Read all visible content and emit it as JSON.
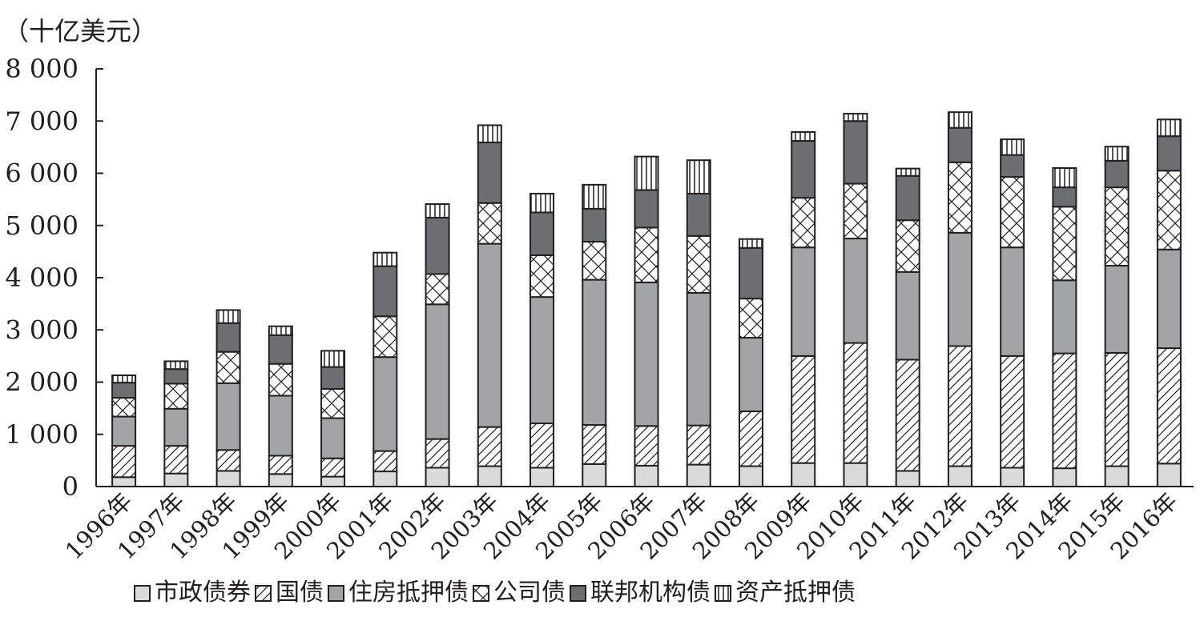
{
  "chart_data": {
    "type": "bar",
    "stacked": true,
    "unit_label": "（十亿美元）",
    "title": "",
    "xlabel": "",
    "ylabel": "",
    "ylim": [
      0,
      8000
    ],
    "yticks": [
      0,
      1000,
      2000,
      3000,
      4000,
      5000,
      6000,
      7000,
      8000
    ],
    "ytick_labels": [
      "0",
      "1 000",
      "2 000",
      "3 000",
      "4 000",
      "5 000",
      "6 000",
      "7 000",
      "8 000"
    ],
    "grid": false,
    "legend_position": "bottom",
    "categories": [
      "1996年",
      "1997年",
      "1998年",
      "1999年",
      "2000年",
      "2001年",
      "2002年",
      "2003年",
      "2004年",
      "2005年",
      "2006年",
      "2007年",
      "2008年",
      "2009年",
      "2010年",
      "2011年",
      "2012年",
      "2013年",
      "2014年",
      "2015年",
      "2016年"
    ],
    "series": [
      {
        "name": "市政债券",
        "pattern": "solid-light",
        "values": [
          180,
          250,
          300,
          240,
          190,
          290,
          360,
          390,
          360,
          430,
          400,
          420,
          390,
          450,
          450,
          300,
          390,
          360,
          350,
          390,
          440
        ]
      },
      {
        "name": "国债",
        "pattern": "hatch",
        "values": [
          600,
          530,
          400,
          350,
          350,
          390,
          550,
          750,
          850,
          750,
          760,
          750,
          1050,
          2050,
          2300,
          2130,
          2300,
          2140,
          2200,
          2170,
          2210
        ]
      },
      {
        "name": "住房抵押债",
        "pattern": "solid-medium",
        "values": [
          560,
          710,
          1280,
          1150,
          770,
          1800,
          2580,
          3510,
          2420,
          2780,
          2750,
          2540,
          1410,
          2080,
          2000,
          1680,
          2170,
          2080,
          1400,
          1670,
          1890
        ]
      },
      {
        "name": "公司债",
        "pattern": "crosshatch",
        "values": [
          360,
          480,
          600,
          610,
          560,
          780,
          580,
          780,
          800,
          730,
          1050,
          1090,
          750,
          950,
          1050,
          990,
          1350,
          1350,
          1410,
          1500,
          1510
        ]
      },
      {
        "name": "联邦机构债",
        "pattern": "solid-dark",
        "values": [
          290,
          280,
          550,
          550,
          420,
          960,
          1080,
          1160,
          820,
          630,
          720,
          810,
          970,
          1090,
          1200,
          850,
          660,
          420,
          370,
          510,
          660
        ]
      },
      {
        "name": "资产抵押债",
        "pattern": "vertical",
        "values": [
          140,
          150,
          250,
          170,
          310,
          260,
          260,
          330,
          360,
          460,
          640,
          640,
          170,
          170,
          140,
          140,
          300,
          300,
          370,
          270,
          320
        ]
      }
    ]
  }
}
